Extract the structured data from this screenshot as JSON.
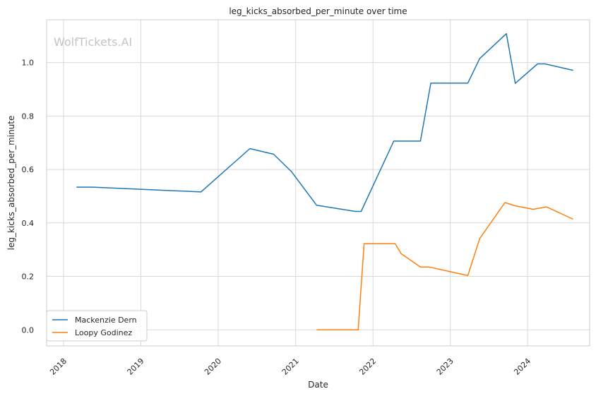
{
  "chart_data": {
    "type": "line",
    "title": "leg_kicks_absorbed_per_minute over time",
    "xlabel": "Date",
    "ylabel": "leg_kicks_absorbed_per_minute",
    "watermark": "WolfTickets.AI",
    "xlim": [
      "2017-10-13",
      "2024-10-20"
    ],
    "ylim": [
      -0.06,
      1.16
    ],
    "x_ticks": [
      "2018",
      "2019",
      "2020",
      "2021",
      "2022",
      "2023",
      "2024"
    ],
    "y_ticks": [
      "0.0",
      "0.2",
      "0.4",
      "0.6",
      "0.8",
      "1.0"
    ],
    "grid": true,
    "legend_position": "lower-left",
    "series": [
      {
        "name": "Mackenzie Dern",
        "color": "#1f77b4",
        "points": [
          [
            "2018-03-03",
            0.534
          ],
          [
            "2018-05-19",
            0.534
          ],
          [
            "2019-10-12",
            0.516
          ],
          [
            "2020-05-30",
            0.678
          ],
          [
            "2020-09-19",
            0.657
          ],
          [
            "2020-12-12",
            0.592
          ],
          [
            "2021-04-10",
            0.466
          ],
          [
            "2021-10-09",
            0.443
          ],
          [
            "2021-11-06",
            0.443
          ],
          [
            "2022-04-09",
            0.706
          ],
          [
            "2022-08-13",
            0.706
          ],
          [
            "2022-10-01",
            0.923
          ],
          [
            "2023-03-25",
            0.923
          ],
          [
            "2023-05-20",
            1.015
          ],
          [
            "2023-09-23",
            1.108
          ],
          [
            "2023-11-04",
            0.922
          ],
          [
            "2024-02-17",
            0.995
          ],
          [
            "2024-03-23",
            0.995
          ],
          [
            "2024-08-03",
            0.971
          ]
        ]
      },
      {
        "name": "Loopy Godinez",
        "color": "#ff7f0e",
        "points": [
          [
            "2021-04-10",
            0.0
          ],
          [
            "2021-10-23",
            0.0
          ],
          [
            "2021-11-20",
            0.322
          ],
          [
            "2022-04-16",
            0.322
          ],
          [
            "2022-05-14",
            0.285
          ],
          [
            "2022-08-13",
            0.235
          ],
          [
            "2022-09-24",
            0.235
          ],
          [
            "2023-03-25",
            0.203
          ],
          [
            "2023-05-20",
            0.341
          ],
          [
            "2023-09-16",
            0.476
          ],
          [
            "2023-11-04",
            0.464
          ],
          [
            "2024-01-27",
            0.451
          ],
          [
            "2024-03-30",
            0.46
          ],
          [
            "2024-08-03",
            0.414
          ]
        ]
      }
    ]
  }
}
